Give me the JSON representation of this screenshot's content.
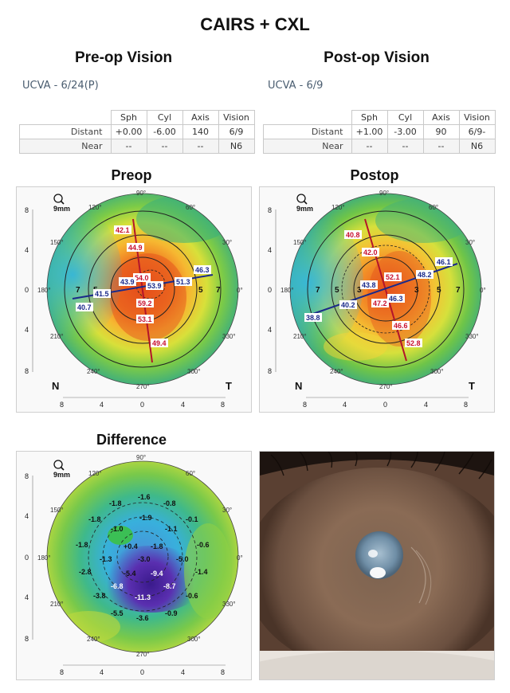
{
  "title": "CAIRS + CXL",
  "preop_vision": {
    "heading": "Pre-op Vision",
    "ucva": "UCVA - 6/24(P)",
    "columns": [
      "Sph",
      "Cyl",
      "Axis",
      "Vision"
    ],
    "rows": [
      {
        "label": "Distant",
        "values": [
          "+0.00",
          "-6.00",
          "140",
          "6/9"
        ]
      },
      {
        "label": "Near",
        "values": [
          "--",
          "--",
          "--",
          "N6"
        ]
      }
    ]
  },
  "postop_vision": {
    "heading": "Post-op Vision",
    "ucva": "UCVA - 6/9",
    "columns": [
      "Sph",
      "Cyl",
      "Axis",
      "Vision"
    ],
    "rows": [
      {
        "label": "Distant",
        "values": [
          "+1.00",
          "-3.00",
          "90",
          "6/9-"
        ]
      },
      {
        "label": "Near",
        "values": [
          "--",
          "--",
          "--",
          "N6"
        ]
      }
    ]
  },
  "maps": {
    "preop": {
      "title": "Preop",
      "zoom": "9mm",
      "nasal": "N",
      "temporal": "T",
      "red_values": [
        "54.0",
        "42.1",
        "44.9",
        "59.2",
        "53.1",
        "49.4"
      ],
      "blue_values": [
        "53.9",
        "43.9",
        "41.5",
        "40.7",
        "51.3",
        "46.3"
      ],
      "ring_numbers": [
        "7",
        "7",
        "5",
        "5"
      ]
    },
    "postop": {
      "title": "Postop",
      "zoom": "9mm",
      "nasal": "N",
      "temporal": "T",
      "red_values": [
        "40.8",
        "42.0",
        "52.1",
        "47.2",
        "46.6",
        "52.8"
      ],
      "blue_values": [
        "43.8",
        "46.3",
        "48.2",
        "46.1",
        "40.2",
        "38.8"
      ],
      "ring_numbers": [
        "7",
        "5",
        "3",
        "3",
        "5",
        "7"
      ]
    },
    "difference": {
      "title": "Difference",
      "zoom": "9mm",
      "values": [
        "-1.6",
        "-1.8",
        "-0.8",
        "-1.9",
        "-1.8",
        "-1.0",
        "-1.1",
        "-0.1",
        "+0.4",
        "-1.8",
        "-1.8",
        "-1.3",
        "-3.0",
        "-5.0",
        "-0.6",
        "-2.8",
        "-5.4",
        "-9.4",
        "-1.4",
        "-6.8",
        "-8.7",
        "-3.8",
        "-11.3",
        "-0.6",
        "-5.5",
        "-3.6",
        "-0.9"
      ]
    },
    "degree_labels": [
      "90°",
      "60°",
      "30°",
      "0°",
      "330°",
      "300°",
      "270°",
      "240°",
      "210°",
      "180°",
      "150°",
      "120°"
    ],
    "axis_ticks_y": [
      "8",
      "4",
      "0",
      "4",
      "8"
    ],
    "axis_ticks_x": [
      "8",
      "4",
      "0",
      "4",
      "8"
    ]
  }
}
